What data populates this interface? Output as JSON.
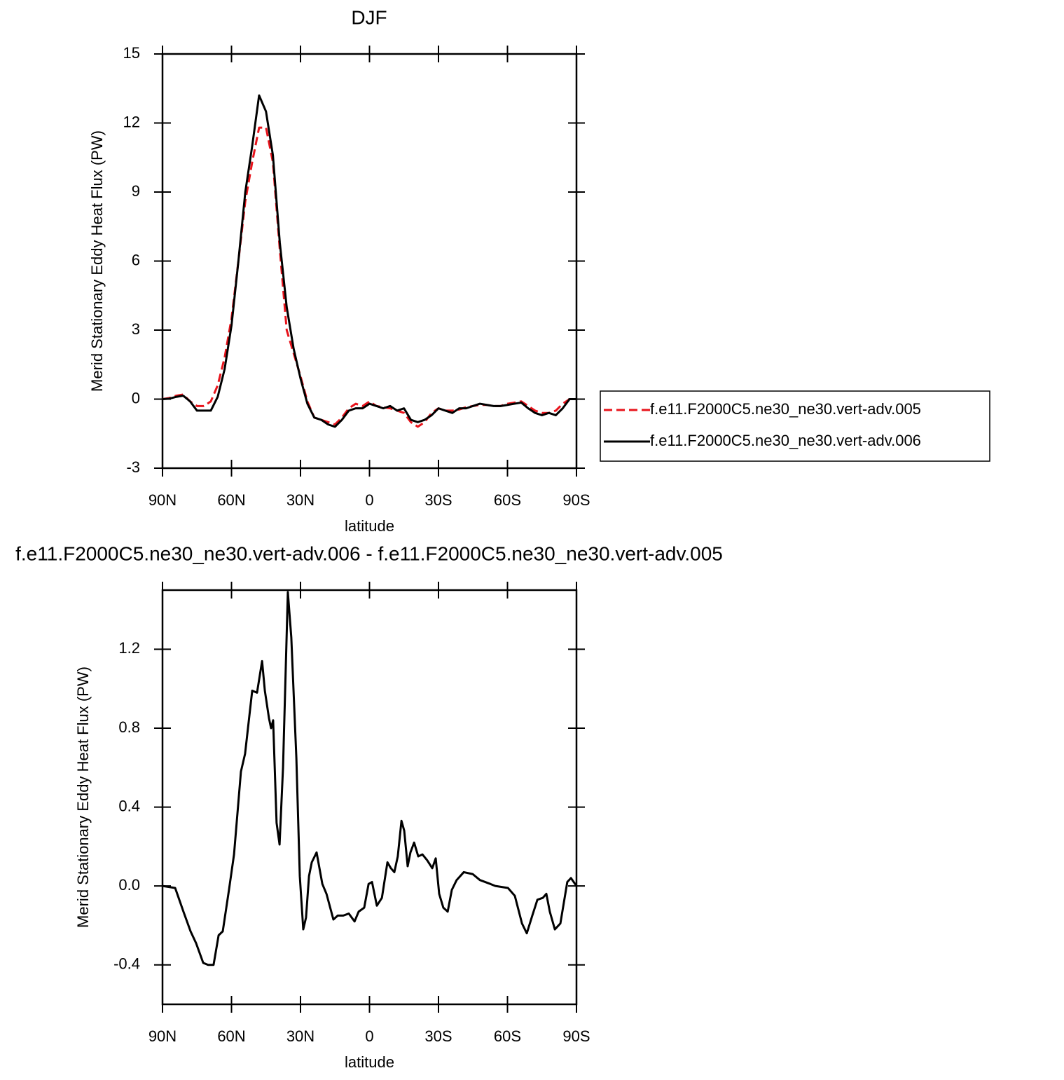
{
  "chart_data": [
    {
      "type": "line",
      "title": "DJF",
      "xlabel": "latitude",
      "ylabel": "Merid Stationary Eddy Heat Flux (PW)",
      "x": [
        90,
        87,
        84,
        81,
        78,
        75,
        72,
        69,
        66,
        63,
        60,
        57,
        54,
        51,
        48,
        45,
        42,
        39,
        36,
        33,
        30,
        27,
        24,
        21,
        18,
        15,
        12,
        9,
        6,
        3,
        0,
        -3,
        -6,
        -9,
        -12,
        -15,
        -18,
        -21,
        -24,
        -27,
        -30,
        -33,
        -36,
        -39,
        -42,
        -45,
        -48,
        -51,
        -54,
        -57,
        -60,
        -63,
        -66,
        -69,
        -72,
        -75,
        -78,
        -81,
        -84,
        -87,
        -90
      ],
      "series": [
        {
          "name": "f.e11.F2000C5.ne30_ne30.vert-adv.005",
          "color": "#e8141c",
          "dash": true,
          "values": [
            0,
            0.05,
            0.15,
            0.2,
            -0.1,
            -0.3,
            -0.3,
            -0.1,
            0.6,
            1.8,
            3.5,
            6.0,
            8.6,
            10.3,
            11.8,
            11.8,
            10.3,
            6.5,
            3.0,
            2.0,
            1.0,
            -0.1,
            -0.8,
            -0.9,
            -1.0,
            -1.1,
            -0.8,
            -0.4,
            -0.2,
            -0.3,
            -0.1,
            -0.3,
            -0.35,
            -0.4,
            -0.5,
            -0.6,
            -1.0,
            -1.2,
            -1.0,
            -0.6,
            -0.4,
            -0.5,
            -0.5,
            -0.45,
            -0.35,
            -0.3,
            -0.25,
            -0.25,
            -0.3,
            -0.3,
            -0.2,
            -0.15,
            -0.1,
            -0.3,
            -0.5,
            -0.6,
            -0.6,
            -0.5,
            -0.2,
            0,
            0
          ]
        },
        {
          "name": "f.e11.F2000C5.ne30_ne30.vert-adv.006",
          "color": "#000000",
          "dash": false,
          "values": [
            0,
            0.02,
            0.1,
            0.15,
            -0.1,
            -0.5,
            -0.5,
            -0.5,
            0.1,
            1.3,
            3.2,
            6.0,
            9.0,
            11.0,
            13.2,
            12.5,
            10.6,
            6.8,
            4.0,
            2.2,
            0.9,
            -0.2,
            -0.8,
            -0.9,
            -1.1,
            -1.2,
            -0.9,
            -0.5,
            -0.4,
            -0.4,
            -0.2,
            -0.3,
            -0.4,
            -0.3,
            -0.5,
            -0.4,
            -0.9,
            -1.0,
            -0.9,
            -0.7,
            -0.4,
            -0.5,
            -0.6,
            -0.4,
            -0.4,
            -0.3,
            -0.2,
            -0.25,
            -0.3,
            -0.3,
            -0.25,
            -0.2,
            -0.15,
            -0.4,
            -0.6,
            -0.7,
            -0.6,
            -0.7,
            -0.4,
            0,
            0
          ]
        }
      ],
      "xlim": [
        90,
        -90
      ],
      "xticks": [
        {
          "value": 90,
          "label": "90N"
        },
        {
          "value": 60,
          "label": "60N"
        },
        {
          "value": 30,
          "label": "30N"
        },
        0,
        {
          "value": -30,
          "label": "30S"
        },
        {
          "value": -60,
          "label": "60S"
        },
        {
          "value": -90,
          "label": "90S"
        }
      ],
      "ylim": [
        -3,
        15
      ],
      "yticks": [
        -3,
        0,
        3,
        6,
        9,
        12,
        15
      ],
      "legend": "right"
    },
    {
      "type": "line",
      "title": "f.e11.F2000C5.ne30_ne30.vert-adv.006 - f.e11.F2000C5.ne30_ne30.vert-adv.005",
      "xlabel": "latitude",
      "ylabel": "Merid Stationary Eddy Heat Flux (PW)",
      "x": [
        90,
        84.5,
        80.9,
        77.8,
        75.4,
        72.3,
        70.2,
        67.8,
        65.6,
        63.8,
        61.1,
        58.9,
        55.9,
        54.1,
        51.0,
        48.9,
        46.7,
        45.5,
        43.7,
        42.8,
        41.9,
        40.4,
        39.1,
        37.6,
        35.5,
        34.0,
        31.8,
        30.3,
        28.8,
        27.6,
        26.3,
        25.1,
        23.0,
        20.5,
        18.7,
        15.7,
        13.8,
        11.4,
        9.0,
        6.5,
        4.7,
        2.3,
        0.4,
        -1.1,
        -3.2,
        -5.4,
        -7.8,
        -9.3,
        -10.8,
        -12.3,
        -13.9,
        -15.1,
        -16.6,
        -17.8,
        -19.4,
        -21.2,
        -23.0,
        -25.1,
        -27.3,
        -28.8,
        -30.3,
        -32.1,
        -34.0,
        -35.8,
        -37.9,
        -41.0,
        -44.9,
        -48.0,
        -52.6,
        -54.7,
        -60.2,
        -63.2,
        -66.3,
        -68.4,
        -70.8,
        -73.0,
        -75.4,
        -76.9,
        -78.4,
        -80.6,
        -83.0,
        -86.0,
        -87.6,
        -90
      ],
      "color": "#000000",
      "values": [
        0,
        -0.01,
        -0.13,
        -0.23,
        -0.29,
        -0.39,
        -0.4,
        -0.4,
        -0.25,
        -0.23,
        -0.02,
        0.16,
        0.58,
        0.67,
        0.99,
        0.98,
        1.14,
        0.99,
        0.85,
        0.8,
        0.84,
        0.32,
        0.21,
        0.6,
        1.49,
        1.26,
        0.65,
        0.05,
        -0.22,
        -0.16,
        0.05,
        0.12,
        0.17,
        0.01,
        -0.04,
        -0.17,
        -0.15,
        -0.15,
        -0.14,
        -0.18,
        -0.13,
        -0.11,
        0.01,
        0.02,
        -0.1,
        -0.06,
        0.12,
        0.09,
        0.07,
        0.15,
        0.33,
        0.28,
        0.1,
        0.17,
        0.22,
        0.15,
        0.16,
        0.13,
        0.09,
        0.14,
        -0.04,
        -0.11,
        -0.13,
        -0.02,
        0.03,
        0.07,
        0.06,
        0.03,
        0.01,
        0,
        -0.01,
        -0.05,
        -0.19,
        -0.24,
        -0.15,
        -0.07,
        -0.06,
        -0.04,
        -0.13,
        -0.22,
        -0.19,
        0.02,
        0.04,
        0
      ],
      "xlim": [
        90,
        -90
      ],
      "xticks": [
        {
          "value": 90,
          "label": "90N"
        },
        {
          "value": 60,
          "label": "60N"
        },
        {
          "value": 30,
          "label": "30N"
        },
        0,
        {
          "value": -30,
          "label": "30S"
        },
        {
          "value": -60,
          "label": "60S"
        },
        {
          "value": -90,
          "label": "90S"
        }
      ],
      "ylim": [
        -0.6,
        1.5
      ],
      "yticks": [
        -0.4,
        {
          "value": 0,
          "label": "0.0"
        },
        0.4,
        0.8,
        1.2
      ]
    }
  ]
}
